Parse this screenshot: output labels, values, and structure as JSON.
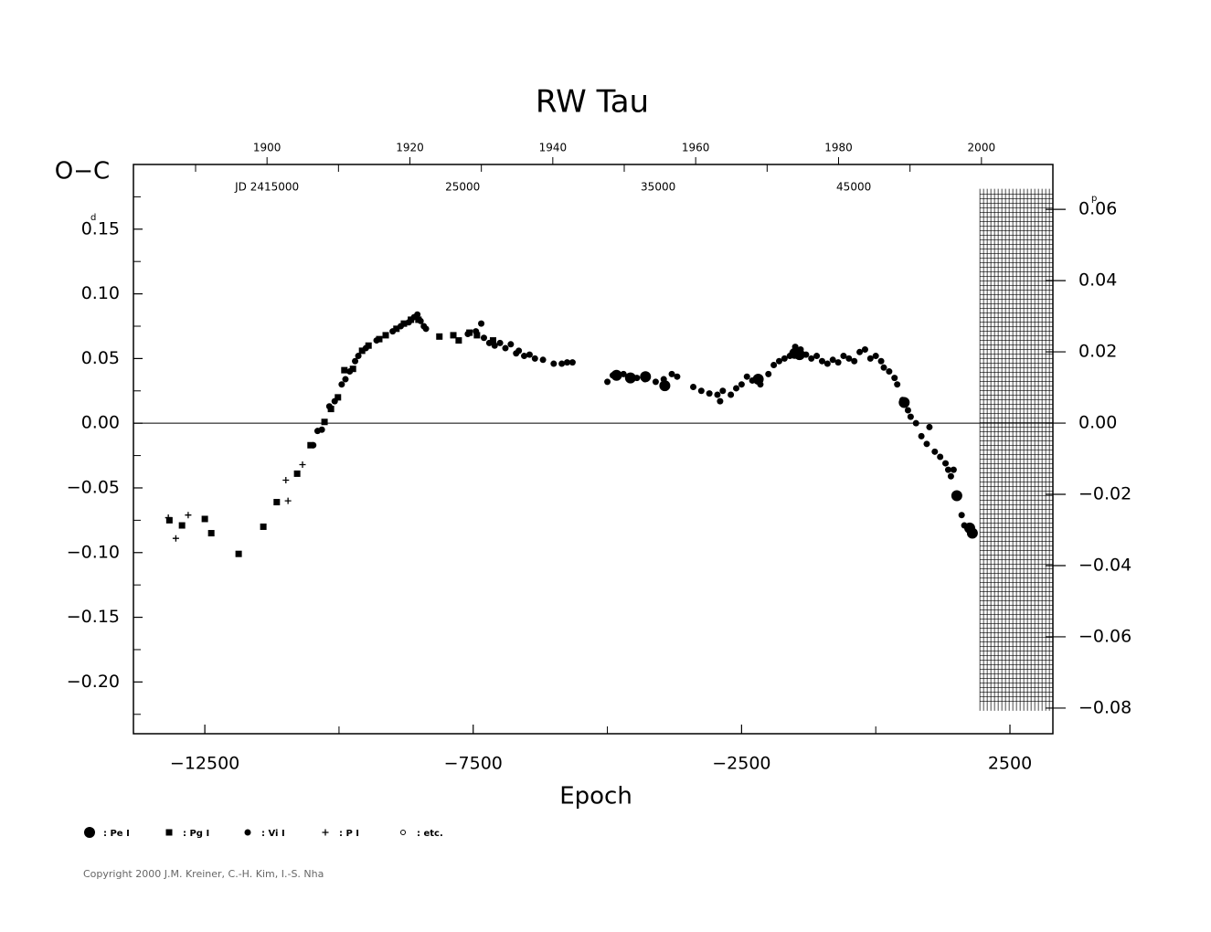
{
  "chart_data": {
    "type": "scatter",
    "title": "RW Tau",
    "ylabel": "O−C",
    "xlabel": "Epoch",
    "y_unit": "d",
    "y2_unit": "p",
    "copyright": "Copyright 2000 J.M. Kreiner, C.-H. Kim, I.-S. Nha",
    "xlim": [
      -13830,
      3300
    ],
    "ylim": [
      -0.24,
      0.2
    ],
    "y2lim": [
      -0.0872,
      0.0726
    ],
    "xticks": [
      {
        "value": -12500,
        "label": "−12500"
      },
      {
        "value": -7500,
        "label": "−7500"
      },
      {
        "value": -2500,
        "label": "−2500"
      },
      2500
    ],
    "x_minor_ticks": [
      -10000,
      -5000,
      0
    ],
    "yticks": [
      {
        "value": 0.15,
        "label": "0.15"
      },
      {
        "value": 0.1,
        "label": "0.10"
      },
      {
        "value": 0.05,
        "label": "0.05"
      },
      {
        "value": 0,
        "label": "0.00"
      },
      {
        "value": -0.05,
        "label": "−0.05"
      },
      {
        "value": -0.1,
        "label": "−0.10"
      },
      {
        "value": -0.15,
        "label": "−0.15"
      },
      {
        "value": -0.2,
        "label": "−0.20"
      }
    ],
    "y_minor_ticks": [
      0.175,
      0.125,
      0.075,
      0.025,
      -0.025,
      -0.075,
      -0.125,
      -0.175,
      -0.225
    ],
    "y2ticks": [
      {
        "value": 0.06,
        "label": "0.06"
      },
      {
        "value": 0.04,
        "label": "0.04"
      },
      {
        "value": 0.02,
        "label": "0.02"
      },
      {
        "value": 0,
        "label": "0.00"
      },
      {
        "value": -0.02,
        "label": "−0.02"
      },
      {
        "value": -0.04,
        "label": "−0.04"
      },
      {
        "value": -0.06,
        "label": "−0.06"
      },
      {
        "value": -0.08,
        "label": "−0.08"
      }
    ],
    "top_xlim": [
      1881.3,
      2010
    ],
    "top_xticks": [
      1900,
      1920,
      1940,
      1960,
      1980,
      2000
    ],
    "top_minor_ticks": [
      1890,
      1910,
      1930,
      1950,
      1970,
      1990
    ],
    "jd_xlim": [
      2408170,
      2455180
    ],
    "jd_ticks": [
      {
        "value": 2415000,
        "label": "JD 2415000"
      },
      {
        "value": 2425000,
        "label": "25000"
      },
      {
        "value": 2435000,
        "label": "35000"
      },
      {
        "value": 2445000,
        "label": "45000"
      }
    ],
    "hatched_region": {
      "xlim": [
        1940,
        3300
      ],
      "ylim": [
        -0.218,
        0.177
      ]
    },
    "series": [
      {
        "name": ": Pe I",
        "marker": "big-circle",
        "color": "#000000",
        "x": [
          -4830,
          -4570,
          -4290,
          -3930,
          -2190,
          -1510,
          -1420,
          530,
          1510,
          1750,
          1800
        ],
        "values": [
          0.037,
          0.035,
          0.036,
          0.029,
          0.034,
          0.054,
          0.053,
          0.016,
          -0.056,
          -0.081,
          -0.085
        ]
      },
      {
        "name": ": Pg I",
        "marker": "square",
        "color": "#000000",
        "x": [
          -13160,
          -12925,
          -12500,
          -12380,
          -11870,
          -11410,
          -11160,
          -10780,
          -10530,
          -10270,
          -10150,
          -10020,
          -9900,
          -9740,
          -9570,
          -9450,
          -9250,
          -9130,
          -8930,
          -8790,
          -8660,
          -8520,
          -8130,
          -7870,
          -7770,
          -7570,
          -7430,
          -7130
        ],
        "values": [
          -0.075,
          -0.079,
          -0.074,
          -0.085,
          -0.101,
          -0.08,
          -0.061,
          -0.039,
          -0.017,
          0.001,
          0.011,
          0.02,
          0.041,
          0.042,
          0.056,
          0.06,
          0.065,
          0.068,
          0.073,
          0.077,
          0.08,
          0.08,
          0.067,
          0.068,
          0.064,
          0.07,
          0.068,
          0.064
        ]
      },
      {
        "name": ": Vi I",
        "marker": "circle",
        "color": "#000000",
        "x": [
          -10480,
          -10400,
          -10320,
          -10180,
          -10080,
          -9950,
          -9880,
          -9800,
          -9700,
          -9640,
          -9500,
          -9300,
          -9000,
          -8850,
          -8700,
          -8600,
          -8540,
          -8480,
          -8420,
          -8380,
          -7600,
          -7450,
          -7350,
          -7300,
          -7200,
          -7100,
          -7000,
          -6900,
          -6800,
          -6700,
          -6650,
          -6550,
          -6450,
          -6350,
          -6200,
          -6000,
          -5850,
          -5750,
          -5650,
          -5000,
          -4900,
          -4700,
          -4450,
          -4300,
          -4100,
          -3950,
          -3800,
          -3700,
          -3400,
          -3250,
          -3100,
          -2950,
          -2900,
          -2850,
          -2700,
          -2600,
          -2500,
          -2400,
          -2300,
          -2150,
          -2000,
          -1900,
          -1800,
          -1700,
          -1600,
          -1500,
          -1400,
          -1300,
          -1200,
          -1100,
          -1000,
          -900,
          -800,
          -700,
          -600,
          -500,
          -400,
          -300,
          -200,
          -100,
          0,
          100,
          150,
          250,
          350,
          400,
          500,
          600,
          650,
          750,
          850,
          950,
          1000,
          1100,
          1200,
          1300,
          1350,
          1400,
          1450,
          1600,
          1650
        ],
        "values": [
          -0.017,
          -0.006,
          -0.005,
          0.013,
          0.017,
          0.03,
          0.034,
          0.04,
          0.048,
          0.052,
          0.058,
          0.064,
          0.071,
          0.075,
          0.078,
          0.082,
          0.084,
          0.079,
          0.075,
          0.073,
          0.069,
          0.071,
          0.077,
          0.066,
          0.062,
          0.06,
          0.062,
          0.058,
          0.061,
          0.054,
          0.056,
          0.052,
          0.053,
          0.05,
          0.049,
          0.046,
          0.046,
          0.047,
          0.047,
          0.032,
          0.037,
          0.038,
          0.035,
          0.034,
          0.032,
          0.034,
          0.038,
          0.036,
          0.028,
          0.025,
          0.023,
          0.022,
          0.017,
          0.025,
          0.022,
          0.027,
          0.03,
          0.036,
          0.033,
          0.03,
          0.038,
          0.045,
          0.048,
          0.05,
          0.052,
          0.059,
          0.057,
          0.053,
          0.05,
          0.052,
          0.048,
          0.046,
          0.049,
          0.047,
          0.052,
          0.05,
          0.048,
          0.055,
          0.057,
          0.05,
          0.052,
          0.048,
          0.043,
          0.04,
          0.035,
          0.03,
          0.018,
          0.01,
          0.005,
          0.0,
          -0.01,
          -0.016,
          -0.003,
          -0.022,
          -0.026,
          -0.031,
          -0.036,
          -0.041,
          -0.036,
          -0.071,
          -0.079
        ]
      },
      {
        "name": ": P I",
        "marker": "plus",
        "color": "#000000",
        "x": [
          -13180,
          -13040,
          -12810,
          -10990,
          -10950,
          -10680
        ],
        "values": [
          -0.073,
          -0.089,
          -0.071,
          -0.044,
          -0.06,
          -0.032
        ]
      },
      {
        "name": ": etc.",
        "marker": "open-circle",
        "color": "#000000",
        "x": [],
        "values": []
      }
    ]
  }
}
